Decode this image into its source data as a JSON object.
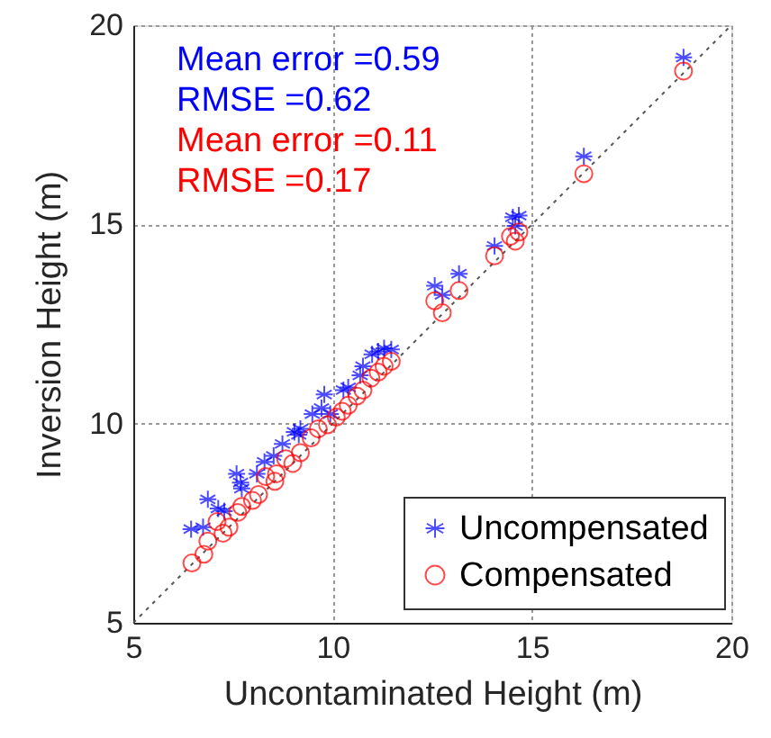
{
  "chart_data": {
    "type": "scatter",
    "xlabel": "Uncontaminated Height (m)",
    "ylabel": "Inversion Height (m)",
    "xlim": [
      5,
      20
    ],
    "ylim": [
      5,
      20
    ],
    "xticks": [
      5,
      10,
      15,
      20
    ],
    "yticks": [
      5,
      10,
      15,
      20
    ],
    "grid": true,
    "legend": "bottom right",
    "annotations": [
      "Mean error =0.59",
      "RMSE =0.62",
      "Mean error =0.11",
      "RMSE =0.17"
    ],
    "series": [
      {
        "name": "Uncompensated",
        "color": "#0000ff",
        "marker": "cross",
        "x": [
          6.45,
          6.75,
          6.87,
          7.13,
          7.28,
          7.59,
          7.69,
          7.72,
          8.1,
          8.29,
          8.52,
          8.74,
          9.04,
          9.15,
          9.19,
          9.49,
          9.72,
          9.79,
          9.94,
          10.27,
          10.39,
          10.69,
          10.76,
          10.99,
          11.14,
          11.29,
          11.47,
          12.56,
          12.75,
          13.17,
          14.06,
          14.52,
          14.67,
          14.58,
          16.3,
          18.8
        ],
        "values": [
          7.35,
          7.4,
          8.1,
          7.87,
          7.8,
          8.74,
          8.52,
          8.37,
          8.74,
          9.04,
          9.19,
          9.49,
          9.79,
          9.72,
          9.87,
          10.24,
          10.39,
          10.73,
          10.24,
          10.84,
          10.91,
          11.21,
          11.44,
          11.74,
          11.81,
          11.89,
          11.86,
          13.46,
          13.23,
          13.76,
          14.46,
          15.18,
          15.22,
          14.96,
          16.71,
          19.19
        ]
      },
      {
        "name": "Compensated",
        "color": "#ff0000",
        "marker": "circle",
        "x": [
          6.47,
          6.77,
          6.87,
          7.1,
          7.25,
          7.4,
          7.62,
          7.72,
          7.99,
          8.14,
          8.32,
          8.55,
          8.59,
          8.82,
          9.0,
          9.19,
          9.46,
          9.64,
          9.87,
          10.09,
          10.24,
          10.39,
          10.61,
          10.76,
          10.96,
          11.14,
          11.29,
          11.47,
          12.56,
          12.75,
          13.17,
          14.06,
          14.46,
          14.58,
          14.67,
          16.3,
          18.8
        ],
        "values": [
          6.5,
          6.72,
          7.05,
          7.54,
          7.25,
          7.4,
          7.77,
          7.92,
          8.07,
          8.22,
          8.67,
          8.55,
          8.74,
          9.12,
          9.0,
          9.27,
          9.64,
          9.87,
          9.97,
          10.16,
          10.31,
          10.46,
          10.69,
          10.84,
          11.14,
          11.29,
          11.44,
          11.56,
          13.08,
          12.78,
          13.34,
          14.21,
          14.7,
          14.58,
          14.81,
          16.27,
          18.85
        ]
      },
      {
        "type": "line",
        "color": "#555555",
        "line_style": "dotted",
        "marker": "none",
        "x": [
          5,
          20
        ],
        "values": [
          5,
          20
        ]
      }
    ]
  }
}
